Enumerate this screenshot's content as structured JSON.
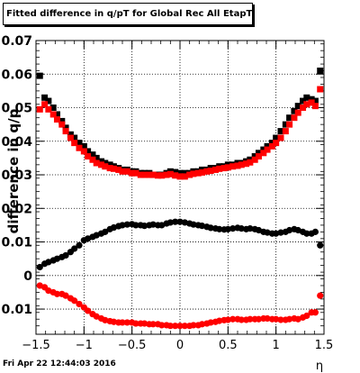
{
  "title": "Fitted difference in q/pT for Global Rec All EtapT",
  "footer": "Fri Apr 22 12:44:03 2016",
  "chart_data": {
    "type": "scatter",
    "title": "Fitted difference in q/pT for Global Rec All EtapT",
    "xlabel": "η",
    "ylabel": "difference in q/p",
    "xlim": [
      -1.5,
      1.5
    ],
    "ylim": [
      -0.0175,
      0.07
    ],
    "grid": true,
    "x_ticks": [
      "−1.5",
      "−1",
      "−0.5",
      "0",
      "0.5",
      "1",
      "1.5"
    ],
    "y_ticks": [
      "−0.01",
      "0",
      "0.01",
      "0.02",
      "0.03",
      "0.04",
      "0.05",
      "0.06",
      "0.07"
    ],
    "x_tick_values": [
      -1.5,
      -1,
      -0.5,
      0,
      0.5,
      1,
      1.5
    ],
    "y_tick_values": [
      -0.01,
      0,
      0.01,
      0.02,
      0.03,
      0.04,
      0.05,
      0.06,
      0.07
    ],
    "series": [
      {
        "color": "#000000",
        "marker": "square",
        "x": [
          -1.46,
          -1.41,
          -1.37,
          -1.32,
          -1.28,
          -1.23,
          -1.19,
          -1.14,
          -1.1,
          -1.05,
          -1.0,
          -0.96,
          -0.91,
          -0.87,
          -0.82,
          -0.78,
          -0.73,
          -0.69,
          -0.64,
          -0.6,
          -0.55,
          -0.5,
          -0.46,
          -0.41,
          -0.37,
          -0.32,
          -0.28,
          -0.23,
          -0.19,
          -0.14,
          -0.1,
          -0.05,
          0.0,
          0.05,
          0.1,
          0.14,
          0.19,
          0.23,
          0.28,
          0.32,
          0.37,
          0.41,
          0.46,
          0.5,
          0.55,
          0.6,
          0.64,
          0.69,
          0.73,
          0.78,
          0.82,
          0.87,
          0.91,
          0.96,
          1.0,
          1.05,
          1.1,
          1.14,
          1.19,
          1.23,
          1.28,
          1.32,
          1.37,
          1.41,
          1.46
        ],
        "y": [
          0.0595,
          0.053,
          0.052,
          0.05,
          0.048,
          0.046,
          0.044,
          0.042,
          0.041,
          0.0395,
          0.0385,
          0.037,
          0.036,
          0.035,
          0.034,
          0.0335,
          0.033,
          0.0325,
          0.032,
          0.0315,
          0.0315,
          0.031,
          0.031,
          0.0305,
          0.0305,
          0.0305,
          0.03,
          0.03,
          0.03,
          0.0305,
          0.031,
          0.0308,
          0.0305,
          0.0305,
          0.0305,
          0.031,
          0.031,
          0.0315,
          0.0315,
          0.032,
          0.032,
          0.0325,
          0.0325,
          0.033,
          0.033,
          0.0335,
          0.0335,
          0.034,
          0.0345,
          0.0355,
          0.0365,
          0.0375,
          0.0385,
          0.0395,
          0.041,
          0.043,
          0.045,
          0.047,
          0.049,
          0.0505,
          0.052,
          0.053,
          0.0525,
          0.052,
          0.061
        ]
      },
      {
        "color": "#ff0000",
        "marker": "square",
        "x": [
          -1.46,
          -1.41,
          -1.37,
          -1.32,
          -1.28,
          -1.23,
          -1.19,
          -1.14,
          -1.1,
          -1.05,
          -1.0,
          -0.96,
          -0.91,
          -0.87,
          -0.82,
          -0.78,
          -0.73,
          -0.69,
          -0.64,
          -0.6,
          -0.55,
          -0.5,
          -0.46,
          -0.41,
          -0.37,
          -0.32,
          -0.28,
          -0.23,
          -0.19,
          -0.14,
          -0.1,
          -0.05,
          0.0,
          0.05,
          0.1,
          0.14,
          0.19,
          0.23,
          0.28,
          0.32,
          0.37,
          0.41,
          0.46,
          0.5,
          0.55,
          0.6,
          0.64,
          0.69,
          0.73,
          0.78,
          0.82,
          0.87,
          0.91,
          0.96,
          1.0,
          1.05,
          1.1,
          1.14,
          1.19,
          1.23,
          1.28,
          1.32,
          1.37,
          1.41,
          1.46
        ],
        "y": [
          0.0495,
          0.051,
          0.0495,
          0.048,
          0.0465,
          0.045,
          0.043,
          0.041,
          0.0395,
          0.038,
          0.037,
          0.0355,
          0.0345,
          0.0335,
          0.033,
          0.0325,
          0.032,
          0.0318,
          0.0315,
          0.031,
          0.031,
          0.0305,
          0.0305,
          0.03,
          0.03,
          0.03,
          0.03,
          0.0298,
          0.0298,
          0.03,
          0.0302,
          0.0298,
          0.0295,
          0.0295,
          0.03,
          0.0303,
          0.0305,
          0.0307,
          0.031,
          0.0312,
          0.0315,
          0.0318,
          0.032,
          0.0322,
          0.0325,
          0.0327,
          0.033,
          0.0333,
          0.0337,
          0.0345,
          0.0355,
          0.0365,
          0.0375,
          0.0385,
          0.0395,
          0.041,
          0.043,
          0.045,
          0.047,
          0.0485,
          0.05,
          0.051,
          0.0515,
          0.0505,
          0.0555
        ]
      },
      {
        "color": "#000000",
        "marker": "circle",
        "x": [
          -1.46,
          -1.41,
          -1.37,
          -1.32,
          -1.28,
          -1.23,
          -1.19,
          -1.14,
          -1.1,
          -1.05,
          -1.0,
          -0.96,
          -0.91,
          -0.87,
          -0.82,
          -0.78,
          -0.73,
          -0.69,
          -0.64,
          -0.6,
          -0.55,
          -0.5,
          -0.46,
          -0.41,
          -0.37,
          -0.32,
          -0.28,
          -0.23,
          -0.19,
          -0.14,
          -0.1,
          -0.05,
          0.0,
          0.05,
          0.1,
          0.14,
          0.19,
          0.23,
          0.28,
          0.32,
          0.37,
          0.41,
          0.46,
          0.5,
          0.55,
          0.6,
          0.64,
          0.69,
          0.73,
          0.78,
          0.82,
          0.87,
          0.91,
          0.96,
          1.0,
          1.05,
          1.1,
          1.14,
          1.19,
          1.23,
          1.28,
          1.32,
          1.37,
          1.41,
          1.46
        ],
        "y": [
          0.0025,
          0.0035,
          0.004,
          0.0045,
          0.005,
          0.0055,
          0.006,
          0.007,
          0.008,
          0.009,
          0.0105,
          0.011,
          0.0115,
          0.012,
          0.0125,
          0.013,
          0.0138,
          0.0143,
          0.0147,
          0.015,
          0.0152,
          0.0153,
          0.015,
          0.015,
          0.0148,
          0.015,
          0.0152,
          0.015,
          0.015,
          0.0155,
          0.0158,
          0.016,
          0.016,
          0.0158,
          0.0155,
          0.0152,
          0.015,
          0.0148,
          0.0145,
          0.0142,
          0.014,
          0.0138,
          0.0137,
          0.0138,
          0.014,
          0.0142,
          0.014,
          0.0138,
          0.014,
          0.0138,
          0.0135,
          0.013,
          0.0128,
          0.0125,
          0.0125,
          0.0128,
          0.013,
          0.0135,
          0.0138,
          0.0135,
          0.013,
          0.0125,
          0.0125,
          0.013,
          0.009
        ]
      },
      {
        "color": "#ff0000",
        "marker": "circle",
        "x": [
          -1.46,
          -1.41,
          -1.37,
          -1.32,
          -1.28,
          -1.23,
          -1.19,
          -1.14,
          -1.1,
          -1.05,
          -1.0,
          -0.96,
          -0.91,
          -0.87,
          -0.82,
          -0.78,
          -0.73,
          -0.69,
          -0.64,
          -0.6,
          -0.55,
          -0.5,
          -0.46,
          -0.41,
          -0.37,
          -0.32,
          -0.28,
          -0.23,
          -0.19,
          -0.14,
          -0.1,
          -0.05,
          0.0,
          0.05,
          0.1,
          0.14,
          0.19,
          0.23,
          0.28,
          0.32,
          0.37,
          0.41,
          0.46,
          0.5,
          0.55,
          0.6,
          0.64,
          0.69,
          0.73,
          0.78,
          0.82,
          0.87,
          0.91,
          0.96,
          1.0,
          1.05,
          1.1,
          1.14,
          1.19,
          1.23,
          1.28,
          1.32,
          1.37,
          1.41,
          1.46
        ],
        "y": [
          -0.003,
          -0.0035,
          -0.0045,
          -0.005,
          -0.0055,
          -0.0055,
          -0.006,
          -0.0068,
          -0.0075,
          -0.0085,
          -0.0095,
          -0.0105,
          -0.0115,
          -0.0122,
          -0.0128,
          -0.0133,
          -0.0136,
          -0.0138,
          -0.014,
          -0.014,
          -0.014,
          -0.014,
          -0.0143,
          -0.0143,
          -0.0143,
          -0.0145,
          -0.0145,
          -0.0145,
          -0.0148,
          -0.0148,
          -0.015,
          -0.015,
          -0.015,
          -0.015,
          -0.015,
          -0.0148,
          -0.0148,
          -0.0145,
          -0.0143,
          -0.014,
          -0.0138,
          -0.0135,
          -0.0133,
          -0.0132,
          -0.013,
          -0.013,
          -0.0132,
          -0.0132,
          -0.013,
          -0.013,
          -0.013,
          -0.0128,
          -0.0128,
          -0.013,
          -0.013,
          -0.0132,
          -0.0132,
          -0.013,
          -0.0128,
          -0.013,
          -0.0125,
          -0.012,
          -0.011,
          -0.011,
          -0.006
        ]
      }
    ]
  }
}
